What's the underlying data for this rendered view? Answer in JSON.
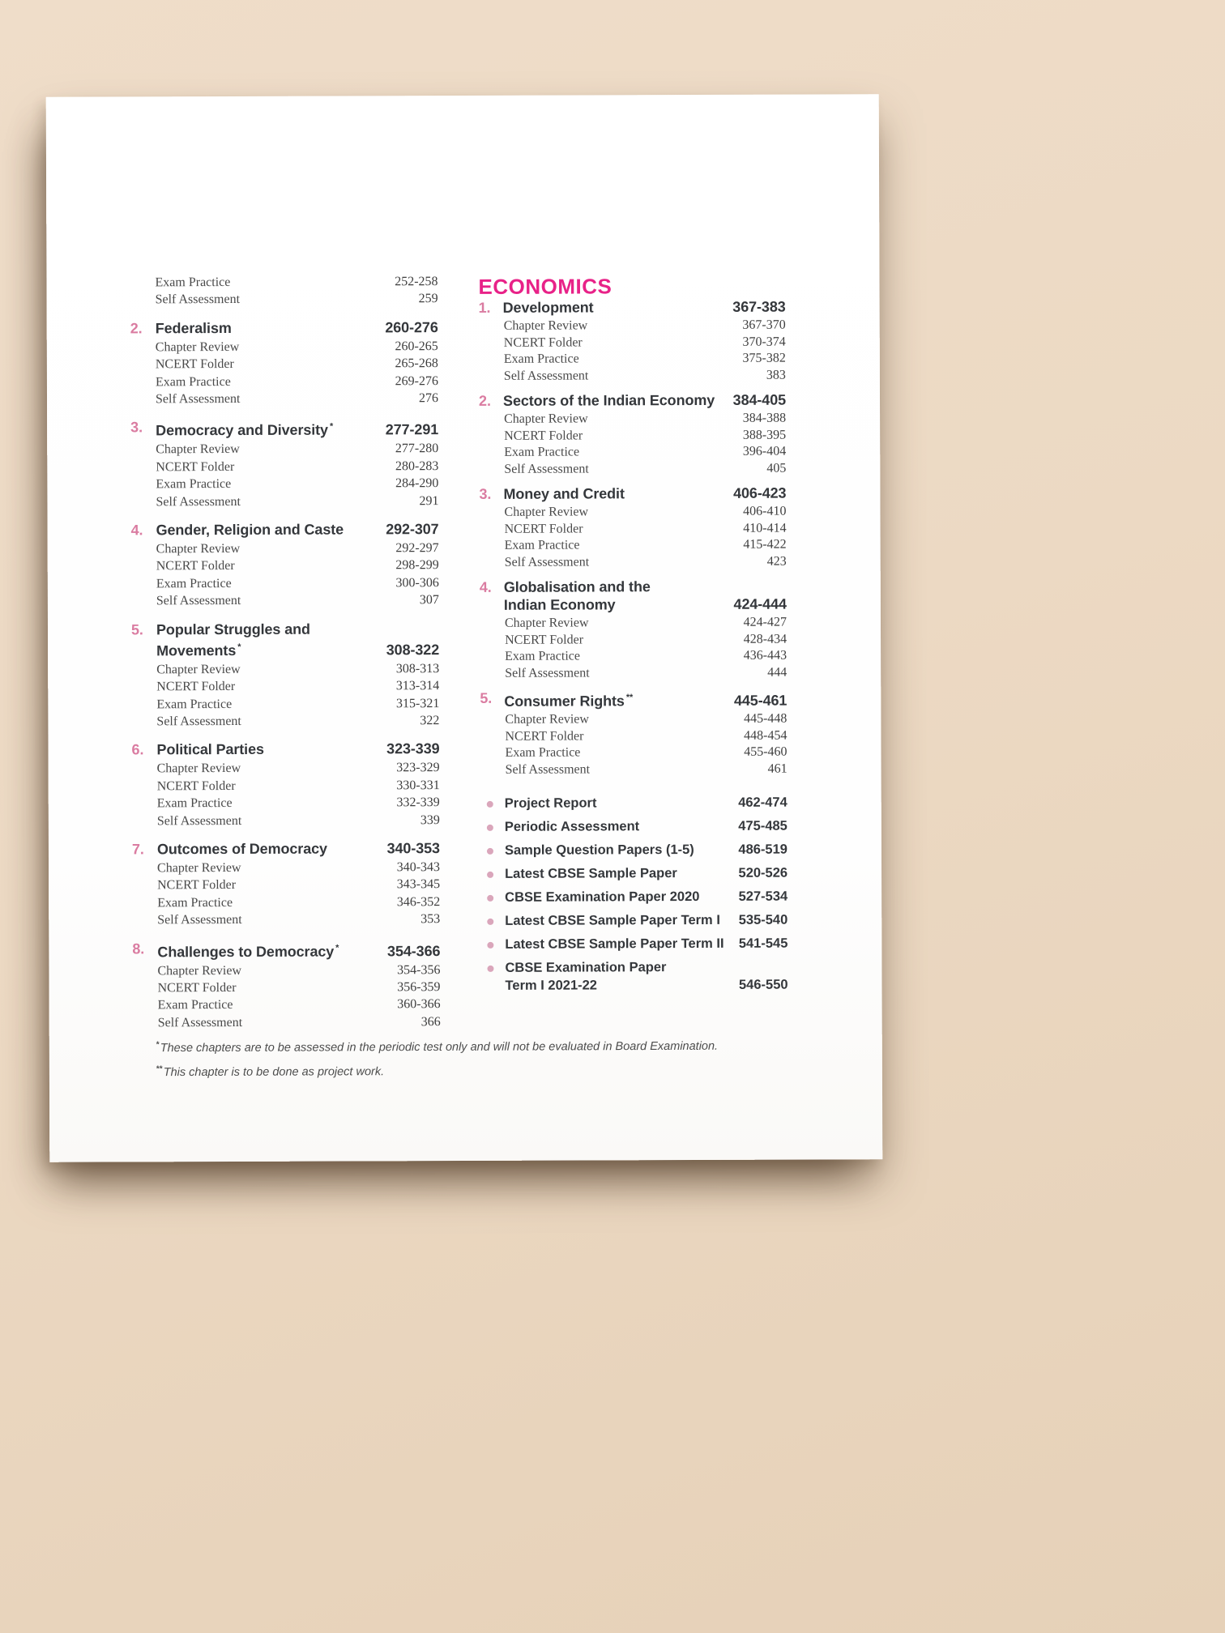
{
  "colors": {
    "background": "#ecd9c3",
    "paper": "#ffffff",
    "section_title": "#e82288",
    "chapter_number_pink": "#da7ca1",
    "bullet_pink": "#daa6bb",
    "heading_text": "#34373b",
    "body_text": "#4a4a4a"
  },
  "left_column": {
    "intro_items": [
      {
        "label": "Exam Practice",
        "pages": "252-258"
      },
      {
        "label": "Self Assessment",
        "pages": "259"
      }
    ],
    "chapters": [
      {
        "number": "2.",
        "title_lines": [
          "Federalism"
        ],
        "marker": "",
        "pages": "260-276",
        "items": [
          {
            "label": "Chapter Review",
            "pages": "260-265"
          },
          {
            "label": "NCERT Folder",
            "pages": "265-268"
          },
          {
            "label": "Exam Practice",
            "pages": "269-276"
          },
          {
            "label": "Self Assessment",
            "pages": "276"
          }
        ]
      },
      {
        "number": "3.",
        "title_lines": [
          "Democracy and Diversity"
        ],
        "marker": "*",
        "pages": "277-291",
        "items": [
          {
            "label": "Chapter Review",
            "pages": "277-280"
          },
          {
            "label": "NCERT Folder",
            "pages": "280-283"
          },
          {
            "label": "Exam Practice",
            "pages": "284-290"
          },
          {
            "label": "Self Assessment",
            "pages": "291"
          }
        ]
      },
      {
        "number": "4.",
        "title_lines": [
          "Gender, Religion and Caste"
        ],
        "marker": "",
        "pages": "292-307",
        "items": [
          {
            "label": "Chapter Review",
            "pages": "292-297"
          },
          {
            "label": "NCERT Folder",
            "pages": "298-299"
          },
          {
            "label": "Exam Practice",
            "pages": "300-306"
          },
          {
            "label": "Self Assessment",
            "pages": "307"
          }
        ]
      },
      {
        "number": "5.",
        "title_lines": [
          "Popular Struggles and",
          "Movements"
        ],
        "marker": "*",
        "pages": "308-322",
        "items": [
          {
            "label": "Chapter Review",
            "pages": "308-313"
          },
          {
            "label": "NCERT Folder",
            "pages": "313-314"
          },
          {
            "label": "Exam Practice",
            "pages": "315-321"
          },
          {
            "label": "Self Assessment",
            "pages": "322"
          }
        ]
      },
      {
        "number": "6.",
        "title_lines": [
          "Political Parties"
        ],
        "marker": "",
        "pages": "323-339",
        "items": [
          {
            "label": "Chapter Review",
            "pages": "323-329"
          },
          {
            "label": "NCERT Folder",
            "pages": "330-331"
          },
          {
            "label": "Exam Practice",
            "pages": "332-339"
          },
          {
            "label": "Self Assessment",
            "pages": "339"
          }
        ]
      },
      {
        "number": "7.",
        "title_lines": [
          "Outcomes of Democracy"
        ],
        "marker": "",
        "pages": "340-353",
        "items": [
          {
            "label": "Chapter Review",
            "pages": "340-343"
          },
          {
            "label": "NCERT Folder",
            "pages": "343-345"
          },
          {
            "label": "Exam Practice",
            "pages": "346-352"
          },
          {
            "label": "Self Assessment",
            "pages": "353"
          }
        ]
      },
      {
        "number": "8.",
        "title_lines": [
          "Challenges to Democracy"
        ],
        "marker": "*",
        "pages": "354-366",
        "items": [
          {
            "label": "Chapter Review",
            "pages": "354-356"
          },
          {
            "label": "NCERT Folder",
            "pages": "356-359"
          },
          {
            "label": "Exam Practice",
            "pages": "360-366"
          },
          {
            "label": "Self Assessment",
            "pages": "366"
          }
        ]
      }
    ]
  },
  "right_column": {
    "section_title": "ECONOMICS",
    "chapters": [
      {
        "number": "1.",
        "title_lines": [
          "Development"
        ],
        "marker": "",
        "pages": "367-383",
        "items": [
          {
            "label": "Chapter Review",
            "pages": "367-370"
          },
          {
            "label": "NCERT Folder",
            "pages": "370-374"
          },
          {
            "label": "Exam Practice",
            "pages": "375-382"
          },
          {
            "label": "Self Assessment",
            "pages": "383"
          }
        ]
      },
      {
        "number": "2.",
        "title_lines": [
          "Sectors of the Indian Economy"
        ],
        "marker": "",
        "pages": "384-405",
        "items": [
          {
            "label": "Chapter Review",
            "pages": "384-388"
          },
          {
            "label": "NCERT Folder",
            "pages": "388-395"
          },
          {
            "label": "Exam Practice",
            "pages": "396-404"
          },
          {
            "label": "Self Assessment",
            "pages": "405"
          }
        ]
      },
      {
        "number": "3.",
        "title_lines": [
          "Money and Credit"
        ],
        "marker": "",
        "pages": "406-423",
        "items": [
          {
            "label": "Chapter Review",
            "pages": "406-410"
          },
          {
            "label": "NCERT Folder",
            "pages": "410-414"
          },
          {
            "label": "Exam Practice",
            "pages": "415-422"
          },
          {
            "label": "Self Assessment",
            "pages": "423"
          }
        ]
      },
      {
        "number": "4.",
        "title_lines": [
          "Globalisation and the",
          "Indian Economy"
        ],
        "marker": "",
        "pages": "424-444",
        "items": [
          {
            "label": "Chapter Review",
            "pages": "424-427"
          },
          {
            "label": "NCERT Folder",
            "pages": "428-434"
          },
          {
            "label": "Exam Practice",
            "pages": "436-443"
          },
          {
            "label": "Self Assessment",
            "pages": "444"
          }
        ]
      },
      {
        "number": "5.",
        "title_lines": [
          "Consumer Rights"
        ],
        "marker": "**",
        "pages": "445-461",
        "items": [
          {
            "label": "Chapter Review",
            "pages": "445-448"
          },
          {
            "label": "NCERT Folder",
            "pages": "448-454"
          },
          {
            "label": "Exam Practice",
            "pages": "455-460"
          },
          {
            "label": "Self Assessment",
            "pages": "461"
          }
        ]
      }
    ],
    "bullet_items": [
      {
        "label_lines": [
          "Project Report"
        ],
        "pages": "462-474"
      },
      {
        "label_lines": [
          "Periodic Assessment"
        ],
        "pages": "475-485"
      },
      {
        "label_lines": [
          "Sample Question Papers (1-5)"
        ],
        "pages": "486-519"
      },
      {
        "label_lines": [
          "Latest CBSE Sample Paper"
        ],
        "pages": "520-526"
      },
      {
        "label_lines": [
          "CBSE Examination Paper 2020"
        ],
        "pages": "527-534"
      },
      {
        "label_lines": [
          "Latest CBSE Sample Paper Term I"
        ],
        "pages": "535-540"
      },
      {
        "label_lines": [
          "Latest CBSE Sample Paper Term II"
        ],
        "pages": "541-545"
      },
      {
        "label_lines": [
          "CBSE Examination Paper",
          "Term I 2021-22"
        ],
        "pages": "546-550"
      }
    ]
  },
  "footnotes": [
    {
      "marker": "*",
      "text": "These chapters are to be assessed in the periodic test only and will not be evaluated in Board Examination."
    },
    {
      "marker": "**",
      "text": "This chapter is to be done as project work."
    }
  ]
}
